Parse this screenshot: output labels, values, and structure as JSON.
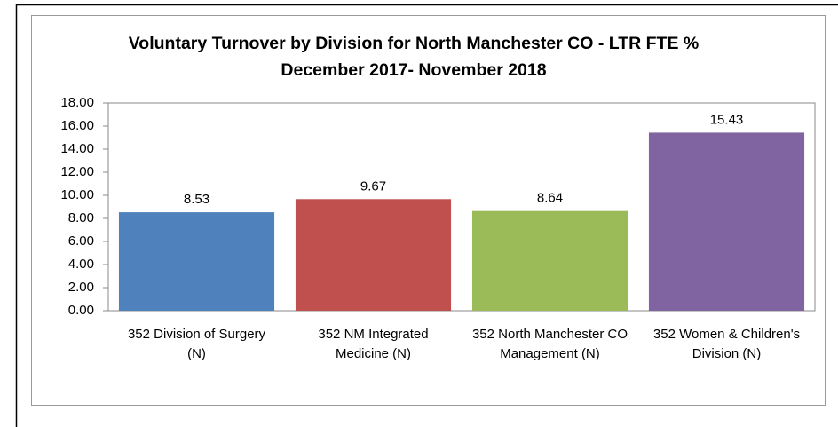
{
  "chart_data": {
    "type": "bar",
    "title": "Voluntary Turnover by Division for North Manchester CO - LTR FTE % December 2017- November 2018",
    "categories": [
      "352 Division of Surgery (N)",
      "352 NM Integrated Medicine (N)",
      "352 North Manchester CO Management (N)",
      "352 Women & Children's Division (N)"
    ],
    "values": [
      8.53,
      9.67,
      8.64,
      15.43
    ],
    "colors": [
      "#4f81bd",
      "#c0504d",
      "#9bbb59",
      "#8064a2"
    ],
    "ylim": [
      0,
      18
    ],
    "yticks": [
      {
        "value": 0,
        "label": "0.00"
      },
      {
        "value": 2,
        "label": "2.00"
      },
      {
        "value": 4,
        "label": "4.00"
      },
      {
        "value": 6,
        "label": "6.00"
      },
      {
        "value": 8,
        "label": "8.00"
      },
      {
        "value": 10,
        "label": "10.00"
      },
      {
        "value": 12,
        "label": "12.00"
      },
      {
        "value": 14,
        "label": "14.00"
      },
      {
        "value": 16,
        "label": "16.00"
      },
      {
        "value": 18,
        "label": "18.00"
      }
    ],
    "grid": false
  }
}
